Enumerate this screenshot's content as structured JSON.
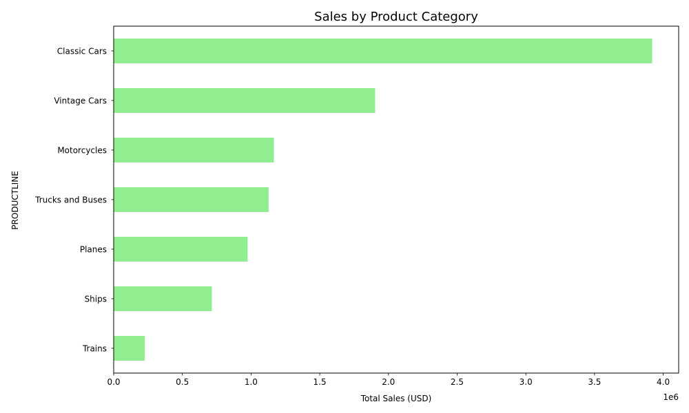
{
  "chart_data": {
    "type": "bar",
    "orientation": "horizontal",
    "title": "Sales by Product Category",
    "xlabel": "Total Sales (USD)",
    "ylabel": "PRODUCTLINE",
    "x_scale_label": "1e6",
    "categories": [
      "Trains",
      "Ships",
      "Planes",
      "Trucks and Buses",
      "Motorcycles",
      "Vintage Cars",
      "Classic Cars"
    ],
    "values": [
      226243,
      714437,
      975004,
      1127790,
      1166388,
      1903151,
      3919616
    ],
    "xlim": [
      0,
      4112500
    ],
    "x_ticks": [
      0,
      500000,
      1000000,
      1500000,
      2000000,
      2500000,
      3000000,
      3500000,
      4000000
    ],
    "x_tick_labels": [
      "0.0",
      "0.5",
      "1.0",
      "1.5",
      "2.0",
      "2.5",
      "3.0",
      "3.5",
      "4.0"
    ],
    "grid": false,
    "bar_color": "#90ee90"
  }
}
